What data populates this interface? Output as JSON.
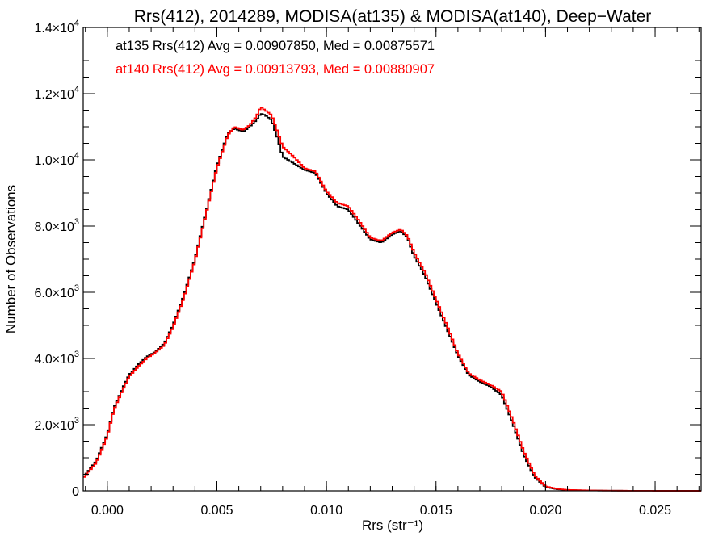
{
  "chart_data": {
    "type": "line",
    "title": "Rrs(412), 2014289, MODISA(at135) & MODISA(at140), Deep−Water",
    "xlabel": "Rrs (str⁻¹)",
    "ylabel": "Number of Observations",
    "xlim": [
      -0.0011,
      0.0271
    ],
    "ylim": [
      0,
      14000
    ],
    "x_ticks": [
      0.0,
      0.005,
      0.01,
      0.015,
      0.02,
      0.025
    ],
    "x_tick_labels": [
      "0.000",
      "0.005",
      "0.010",
      "0.015",
      "0.020",
      "0.025"
    ],
    "y_ticks": [
      {
        "value": 0,
        "mantissa": "0",
        "exp": ""
      },
      {
        "value": 2000,
        "mantissa": "2.0×10",
        "exp": "3"
      },
      {
        "value": 4000,
        "mantissa": "4.0×10",
        "exp": "3"
      },
      {
        "value": 6000,
        "mantissa": "6.0×10",
        "exp": "3"
      },
      {
        "value": 8000,
        "mantissa": "8.0×10",
        "exp": "3"
      },
      {
        "value": 10000,
        "mantissa": "1.0×10",
        "exp": "4"
      },
      {
        "value": 12000,
        "mantissa": "1.2×10",
        "exp": "4"
      },
      {
        "value": 14000,
        "mantissa": "1.4×10",
        "exp": "4"
      }
    ],
    "grid": false,
    "annotations": [
      {
        "text": "at135 Rrs(412) Avg = 0.00907850, Med = 0.00875571",
        "color": "#000000"
      },
      {
        "text": "at140 Rrs(412) Avg = 0.00913793, Med = 0.00880907",
        "color": "#ff0000"
      }
    ],
    "series": [
      {
        "color": "#000000",
        "x": [
          -0.0011,
          -0.0005,
          0.0,
          0.0003,
          0.0007,
          0.001,
          0.0014,
          0.0018,
          0.0022,
          0.0026,
          0.003,
          0.0035,
          0.004,
          0.0045,
          0.005,
          0.0055,
          0.0058,
          0.0062,
          0.0065,
          0.0068,
          0.007,
          0.0072,
          0.0075,
          0.0078,
          0.008,
          0.0085,
          0.009,
          0.0095,
          0.01,
          0.0105,
          0.011,
          0.0115,
          0.012,
          0.0125,
          0.013,
          0.0134,
          0.0137,
          0.014,
          0.0145,
          0.015,
          0.0155,
          0.016,
          0.0165,
          0.017,
          0.0175,
          0.018,
          0.0185,
          0.019,
          0.0195,
          0.02,
          0.0205,
          0.021,
          0.022,
          0.023,
          0.024,
          0.025,
          0.026,
          0.0271
        ],
        "y": [
          400,
          900,
          1700,
          2500,
          3100,
          3500,
          3800,
          4050,
          4200,
          4450,
          5000,
          5900,
          7000,
          8400,
          9800,
          10800,
          10950,
          10850,
          11000,
          11200,
          11400,
          11350,
          11200,
          10600,
          10100,
          9900,
          9700,
          9600,
          9000,
          8600,
          8500,
          8050,
          7600,
          7500,
          7750,
          7850,
          7650,
          7100,
          6500,
          5700,
          4900,
          4100,
          3500,
          3300,
          3150,
          2900,
          2050,
          1100,
          420,
          120,
          50,
          25,
          10,
          5,
          3,
          2,
          1,
          1
        ]
      },
      {
        "color": "#ff0000",
        "x": [
          -0.0011,
          -0.0005,
          0.0,
          0.0003,
          0.0007,
          0.001,
          0.0014,
          0.0018,
          0.0022,
          0.0026,
          0.003,
          0.0035,
          0.004,
          0.0045,
          0.005,
          0.0055,
          0.0058,
          0.0062,
          0.0065,
          0.0068,
          0.007,
          0.0072,
          0.0075,
          0.0078,
          0.008,
          0.0085,
          0.009,
          0.0095,
          0.01,
          0.0105,
          0.011,
          0.0115,
          0.012,
          0.0125,
          0.013,
          0.0134,
          0.0137,
          0.014,
          0.0145,
          0.015,
          0.0155,
          0.016,
          0.0165,
          0.017,
          0.0175,
          0.018,
          0.0185,
          0.019,
          0.0195,
          0.02,
          0.0205,
          0.021,
          0.022,
          0.023,
          0.024,
          0.025,
          0.026,
          0.0271
        ],
        "y": [
          380,
          850,
          1650,
          2450,
          3050,
          3450,
          3750,
          4000,
          4180,
          4400,
          4950,
          5850,
          6950,
          8350,
          9750,
          10750,
          11000,
          10900,
          11050,
          11300,
          11600,
          11500,
          11350,
          10800,
          10400,
          10100,
          9750,
          9650,
          9050,
          8700,
          8600,
          8150,
          7650,
          7550,
          7800,
          7900,
          7700,
          7200,
          6600,
          5800,
          5000,
          4150,
          3550,
          3350,
          3200,
          3000,
          2150,
          1200,
          470,
          140,
          60,
          30,
          12,
          6,
          3,
          2,
          1,
          1
        ]
      }
    ]
  }
}
